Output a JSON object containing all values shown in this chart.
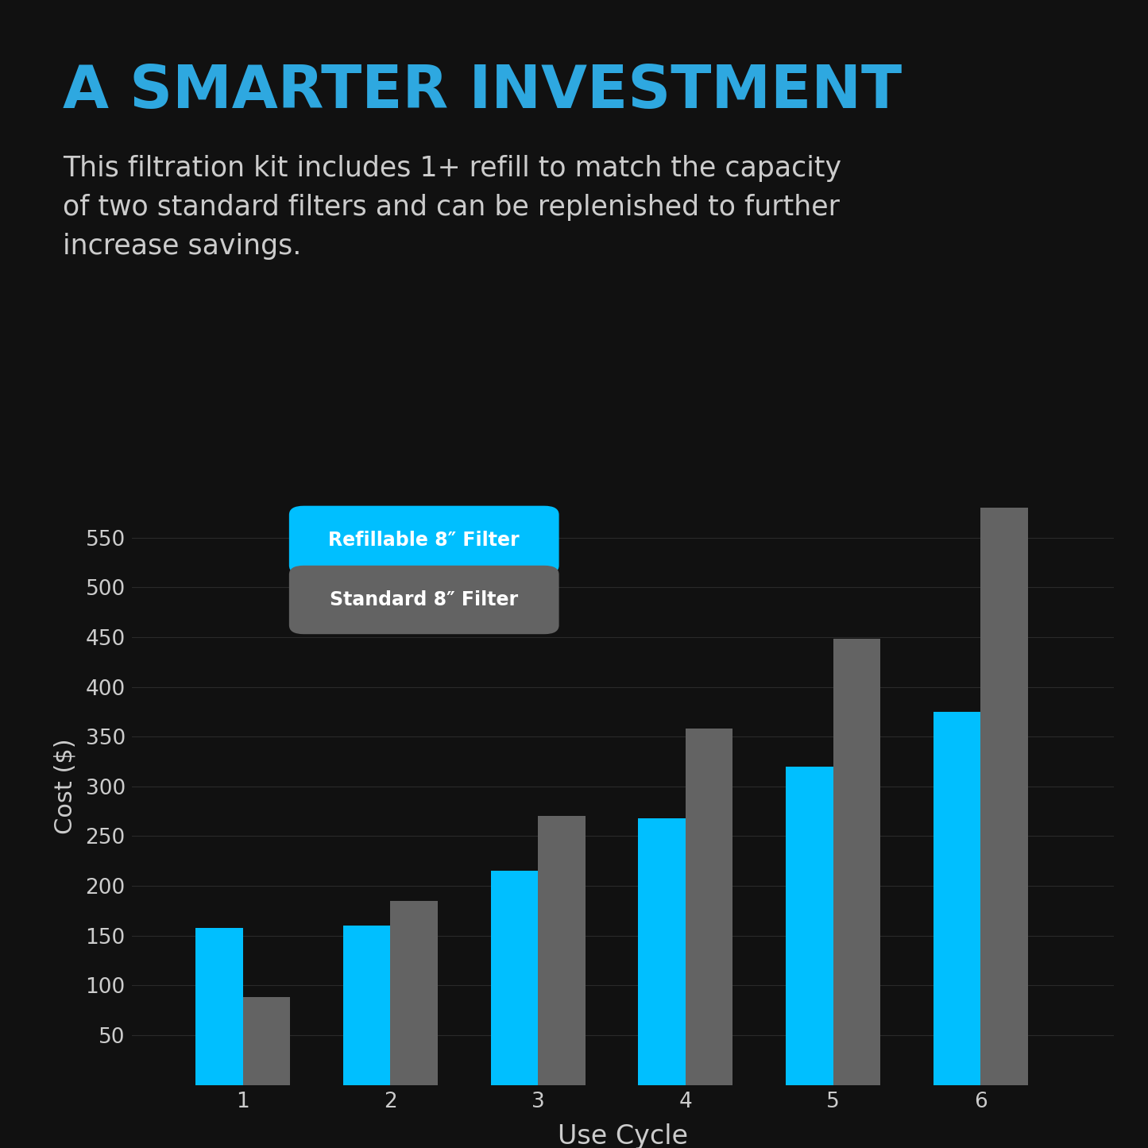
{
  "title": "A SMARTER INVESTMENT",
  "subtitle": "This filtration kit includes 1+ refill to match the capacity\nof two standard filters and can be replenished to further\nincrease savings.",
  "refillable_values": [
    158,
    160,
    215,
    268,
    320,
    375
  ],
  "standard_values": [
    88,
    185,
    270,
    358,
    448,
    580
  ],
  "cycles": [
    1,
    2,
    3,
    4,
    5,
    6
  ],
  "xlabel": "Use Cycle",
  "ylabel": "Cost ($)",
  "ylim": [
    0,
    600
  ],
  "yticks": [
    50,
    100,
    150,
    200,
    250,
    300,
    350,
    400,
    450,
    500,
    550
  ],
  "refillable_color": "#00BFFF",
  "standard_color": "#636363",
  "background_color": "#111111",
  "text_color": "#cccccc",
  "title_color": "#2EA8E0",
  "subtitle_color": "#cccccc",
  "grid_color": "#2a2a2a",
  "legend_refillable_label": "Refillable 8″ Filter",
  "legend_standard_label": "Standard 8″ Filter",
  "bar_width": 0.32
}
